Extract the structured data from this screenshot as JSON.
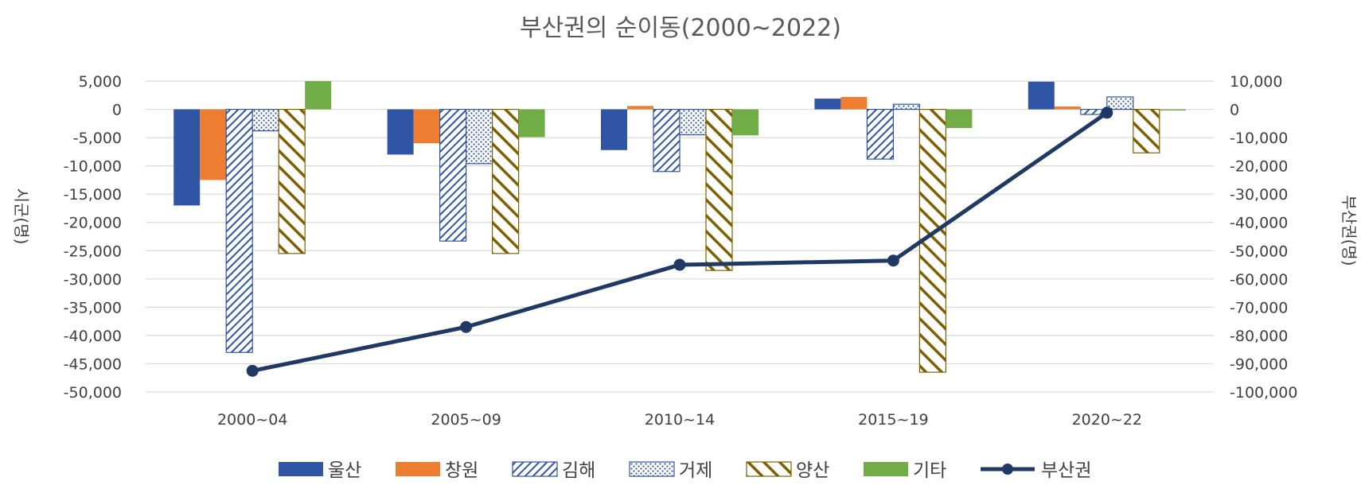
{
  "chart_data": {
    "type": "bar",
    "title": "부산권의 순이동(2000~2022)",
    "categories": [
      "2000~04",
      "2005~09",
      "2010~14",
      "2015~19",
      "2020~22"
    ],
    "ylabel": "시군(명)",
    "y2label": "부산권(명)",
    "ylim": [
      -50000,
      5000
    ],
    "y2lim": [
      -100000,
      10000
    ],
    "yticks": [
      "5,000",
      "0",
      "-5,000",
      "-10,000",
      "-15,000",
      "-20,000",
      "-25,000",
      "-30,000",
      "-35,000",
      "-40,000",
      "-45,000",
      "-50,000"
    ],
    "y2ticks": [
      "10,000",
      "0",
      "-10,000",
      "-20,000",
      "-30,000",
      "-40,000",
      "-50,000",
      "-60,000",
      "-70,000",
      "-80,000",
      "-90,000",
      "-100,000"
    ],
    "grid": true,
    "legend_position": "bottom",
    "series": [
      {
        "name": "울산",
        "type": "bar",
        "axis": "left",
        "pattern": "solid",
        "color": "#2F55A4",
        "values": [
          -17000,
          -8000,
          -7200,
          1900,
          4900
        ]
      },
      {
        "name": "창원",
        "type": "bar",
        "axis": "left",
        "pattern": "solid",
        "color": "#ED7D31",
        "values": [
          -12500,
          -6000,
          600,
          2200,
          500
        ]
      },
      {
        "name": "김해",
        "type": "bar",
        "axis": "left",
        "pattern": "diagonal",
        "color": "#2F55A4",
        "values": [
          -43000,
          -23300,
          -11000,
          -8800,
          -900
        ]
      },
      {
        "name": "거제",
        "type": "bar",
        "axis": "left",
        "pattern": "dots",
        "color": "#2F55A4",
        "values": [
          -3800,
          -9600,
          -4500,
          900,
          2200
        ]
      },
      {
        "name": "양산",
        "type": "bar",
        "axis": "left",
        "pattern": "wide-diagonal",
        "color": "#7F6000",
        "values": [
          -25500,
          -25500,
          -28500,
          -46500,
          -7700
        ]
      },
      {
        "name": "기타",
        "type": "bar",
        "axis": "left",
        "pattern": "solid",
        "color": "#70AD47",
        "values": [
          5000,
          -4900,
          -4600,
          -3300,
          -200
        ]
      },
      {
        "name": "부산권",
        "type": "line",
        "axis": "right",
        "color": "#203864",
        "values": [
          -92500,
          -77000,
          -55000,
          -53500,
          -1200
        ]
      }
    ]
  }
}
